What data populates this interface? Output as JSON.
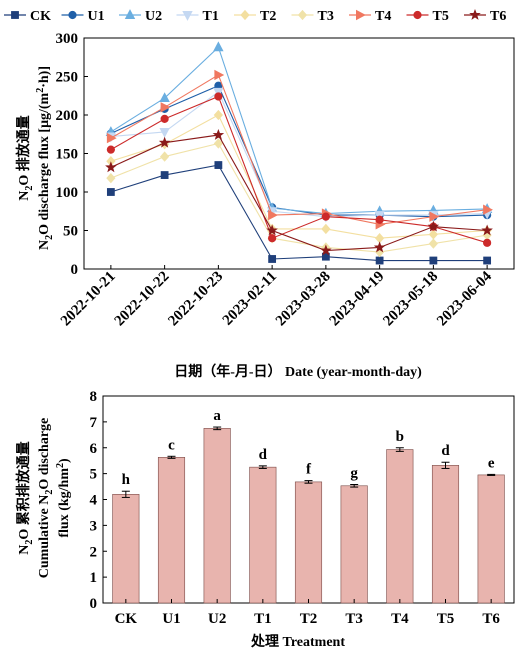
{
  "legend": [
    "CK",
    "U1",
    "U2",
    "T1",
    "T2",
    "T3",
    "T4",
    "T5",
    "T6"
  ],
  "colors": {
    "CK": "#1f3f7a",
    "U1": "#1f5fa8",
    "U2": "#6aaee0",
    "T1": "#c4d8f2",
    "T2": "#f3dfa0",
    "T3": "#f0e2a8",
    "T4": "#f07860",
    "T5": "#cc2a2a",
    "T6": "#8a1a1a",
    "bar": "#e8b4ae",
    "bar_stroke": "#7a4a46"
  },
  "markers": {
    "CK": "square-icon",
    "U1": "circle-icon",
    "U2": "triangle-up-icon",
    "T1": "triangle-down-icon",
    "T2": "diamond-icon",
    "T3": "diamond-icon",
    "T4": "triangle-right-icon",
    "T5": "circle-icon",
    "T6": "star-icon"
  },
  "top": {
    "y_title_cn_prefix": "N",
    "y_title_cn_sub": "2",
    "y_title_cn_suffix": "O 排放通量",
    "y_title_en_prefix": "N",
    "y_title_en_sub": "2",
    "y_title_en_mid": "O discharge flux [μg/(m",
    "y_title_en_sup": "2",
    "y_title_en_suffix": "·h)]",
    "x_title": "日期（年-月-日） Date (year-month-day)"
  },
  "bottom": {
    "y_title_l1_prefix": "N",
    "y_title_l1_sub": "2",
    "y_title_l1_suffix": "O 累积排放通量",
    "y_title_l2_prefix": "Cumulative N",
    "y_title_l2_sub": "2",
    "y_title_l2_suffix": "O discharge",
    "y_title_l3_prefix": "flux (kg/hm",
    "y_title_l3_sup": "2",
    "y_title_l3_suffix": ")",
    "x_title": "处理 Treatment"
  },
  "chart_data": [
    {
      "type": "line",
      "categories": [
        "2022-10-21",
        "2022-10-22",
        "2022-10-23",
        "2023-02-11",
        "2023-03-28",
        "2023-04-19",
        "2023-05-18",
        "2023-06-04"
      ],
      "ylim": [
        0,
        300
      ],
      "yticks": [
        0,
        50,
        100,
        150,
        200,
        250,
        300
      ],
      "xlabel": "日期（年-月-日） Date (year-month-day)",
      "ylabel": "N2O 排放通量 N2O discharge flux [μg/(m2·h)]",
      "series": [
        {
          "name": "CK",
          "values": [
            100,
            122,
            135,
            13,
            16,
            11,
            11,
            11
          ]
        },
        {
          "name": "U1",
          "values": [
            176,
            208,
            238,
            80,
            70,
            70,
            68,
            70
          ]
        },
        {
          "name": "U2",
          "values": [
            178,
            222,
            288,
            79,
            72,
            75,
            76,
            78
          ]
        },
        {
          "name": "T1",
          "values": [
            172,
            178,
            230,
            75,
            68,
            70,
            70,
            72
          ]
        },
        {
          "name": "T2",
          "values": [
            140,
            162,
            200,
            52,
            52,
            40,
            45,
            50
          ]
        },
        {
          "name": "T3",
          "values": [
            118,
            146,
            163,
            40,
            28,
            22,
            33,
            44
          ]
        },
        {
          "name": "T4",
          "values": [
            170,
            210,
            252,
            70,
            72,
            58,
            68,
            77
          ]
        },
        {
          "name": "T5",
          "values": [
            155,
            195,
            224,
            40,
            68,
            64,
            55,
            34
          ]
        },
        {
          "name": "T6",
          "values": [
            132,
            164,
            174,
            50,
            24,
            28,
            55,
            50
          ]
        }
      ]
    },
    {
      "type": "bar",
      "categories": [
        "CK",
        "U1",
        "U2",
        "T1",
        "T2",
        "T3",
        "T4",
        "T5",
        "T6"
      ],
      "values": [
        4.2,
        5.63,
        6.75,
        5.25,
        4.68,
        4.53,
        5.93,
        5.32,
        4.95
      ],
      "errors": [
        0.12,
        0.04,
        0.05,
        0.05,
        0.05,
        0.05,
        0.07,
        0.12,
        0.02
      ],
      "labels": [
        "h",
        "c",
        "a",
        "d",
        "f",
        "g",
        "b",
        "d",
        "e"
      ],
      "ylim": [
        0,
        8
      ],
      "yticks": [
        0,
        1,
        2,
        3,
        4,
        5,
        6,
        7,
        8
      ],
      "xlabel": "处理 Treatment",
      "ylabel": "N2O 累积排放通量 Cumulative N2O discharge flux (kg/hm2)"
    }
  ]
}
